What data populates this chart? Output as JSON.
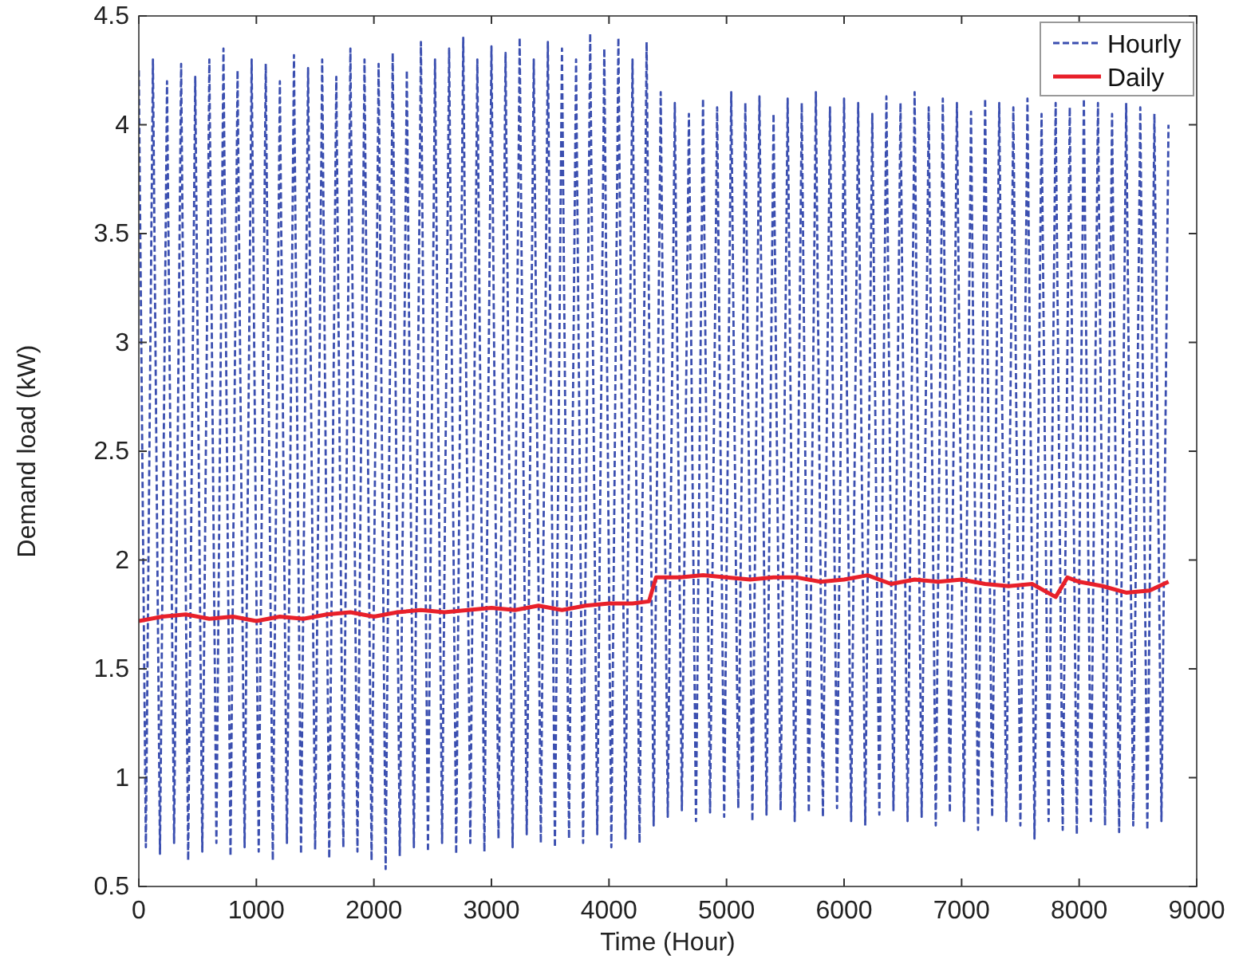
{
  "chart_data": {
    "type": "line",
    "xlabel": "Time (Hour)",
    "ylabel": "Demand load (kW)",
    "xlim": [
      0,
      9000
    ],
    "ylim": [
      0.5,
      4.5
    ],
    "xticks": [
      0,
      1000,
      2000,
      3000,
      4000,
      5000,
      6000,
      7000,
      8000,
      9000
    ],
    "yticks": [
      0.5,
      1,
      1.5,
      2,
      2.5,
      3,
      3.5,
      4,
      4.5
    ],
    "grid": false,
    "legend": "top right",
    "series": [
      {
        "name": "Hourly",
        "color": "#3b4fb0",
        "line_style": "dashed",
        "x": [
          0,
          60,
          120,
          180,
          240,
          300,
          360,
          420,
          480,
          540,
          600,
          660,
          720,
          780,
          840,
          900,
          960,
          1020,
          1080,
          1140,
          1200,
          1260,
          1320,
          1380,
          1440,
          1500,
          1560,
          1620,
          1680,
          1740,
          1800,
          1860,
          1920,
          1980,
          2040,
          2100,
          2160,
          2220,
          2280,
          2340,
          2400,
          2460,
          2520,
          2580,
          2640,
          2700,
          2760,
          2820,
          2880,
          2940,
          3000,
          3060,
          3120,
          3180,
          3240,
          3300,
          3360,
          3420,
          3480,
          3540,
          3600,
          3660,
          3720,
          3780,
          3840,
          3900,
          3960,
          4020,
          4080,
          4140,
          4200,
          4260,
          4320,
          4380,
          4440,
          4500,
          4560,
          4620,
          4680,
          4740,
          4800,
          4860,
          4920,
          4980,
          5040,
          5100,
          5160,
          5220,
          5280,
          5340,
          5400,
          5460,
          5520,
          5580,
          5640,
          5700,
          5760,
          5820,
          5880,
          5940,
          6000,
          6060,
          6120,
          6180,
          6240,
          6300,
          6360,
          6420,
          6480,
          6540,
          6600,
          6660,
          6720,
          6780,
          6840,
          6900,
          6960,
          7020,
          7080,
          7140,
          7200,
          7260,
          7320,
          7380,
          7440,
          7500,
          7560,
          7620,
          7680,
          7740,
          7800,
          7860,
          7920,
          7980,
          8040,
          8100,
          8160,
          8220,
          8280,
          8340,
          8400,
          8460,
          8520,
          8580,
          8640,
          8700,
          8760
        ],
        "values": [
          4.25,
          0.68,
          4.3,
          0.65,
          4.2,
          0.7,
          4.28,
          0.62,
          4.22,
          0.66,
          4.3,
          0.7,
          4.35,
          0.64,
          4.25,
          0.68,
          4.3,
          0.66,
          4.28,
          0.62,
          4.2,
          0.7,
          4.32,
          0.65,
          4.26,
          0.67,
          4.3,
          0.63,
          4.22,
          0.68,
          4.35,
          0.66,
          4.3,
          0.62,
          4.28,
          0.58,
          4.33,
          0.64,
          4.25,
          0.68,
          4.38,
          0.66,
          4.3,
          0.7,
          4.35,
          0.65,
          4.4,
          0.7,
          4.3,
          0.66,
          4.36,
          0.72,
          4.33,
          0.68,
          4.4,
          0.74,
          4.3,
          0.7,
          4.38,
          0.68,
          4.35,
          0.72,
          4.3,
          0.7,
          4.42,
          0.74,
          4.35,
          0.68,
          4.4,
          0.72,
          4.3,
          0.7,
          4.38,
          0.78,
          4.15,
          0.82,
          4.1,
          0.85,
          4.05,
          0.8,
          4.12,
          0.84,
          4.08,
          0.82,
          4.15,
          0.86,
          4.1,
          0.8,
          4.13,
          0.83,
          4.05,
          0.85,
          4.12,
          0.8,
          4.1,
          0.84,
          4.15,
          0.82,
          4.08,
          0.86,
          4.12,
          0.8,
          4.1,
          0.78,
          4.05,
          0.83,
          4.13,
          0.85,
          4.1,
          0.8,
          4.15,
          0.82,
          4.08,
          0.78,
          4.12,
          0.84,
          4.1,
          0.8,
          4.06,
          0.76,
          4.12,
          0.82,
          4.1,
          0.8,
          4.08,
          0.78,
          4.12,
          0.72,
          4.05,
          0.8,
          4.1,
          0.76,
          4.08,
          0.74,
          4.12,
          0.8,
          4.1,
          0.78,
          4.05,
          0.75,
          4.1,
          0.78,
          4.08,
          0.76,
          4.05,
          0.8,
          4.0
        ]
      },
      {
        "name": "Daily",
        "color": "#e8202a",
        "line_style": "solid",
        "x": [
          0,
          200,
          400,
          600,
          800,
          1000,
          1200,
          1400,
          1600,
          1800,
          2000,
          2200,
          2400,
          2600,
          2800,
          3000,
          3200,
          3400,
          3600,
          3800,
          4000,
          4200,
          4340,
          4400,
          4600,
          4800,
          5000,
          5200,
          5400,
          5600,
          5800,
          6000,
          6200,
          6400,
          6600,
          6800,
          7000,
          7200,
          7400,
          7600,
          7800,
          7900,
          8000,
          8200,
          8400,
          8600,
          8760
        ],
        "values": [
          1.72,
          1.74,
          1.75,
          1.73,
          1.74,
          1.72,
          1.74,
          1.73,
          1.75,
          1.76,
          1.74,
          1.76,
          1.77,
          1.76,
          1.77,
          1.78,
          1.77,
          1.79,
          1.77,
          1.79,
          1.8,
          1.8,
          1.81,
          1.92,
          1.92,
          1.93,
          1.92,
          1.91,
          1.92,
          1.92,
          1.9,
          1.91,
          1.93,
          1.89,
          1.91,
          1.9,
          1.91,
          1.89,
          1.88,
          1.89,
          1.83,
          1.92,
          1.9,
          1.88,
          1.85,
          1.86,
          1.9
        ]
      }
    ]
  }
}
